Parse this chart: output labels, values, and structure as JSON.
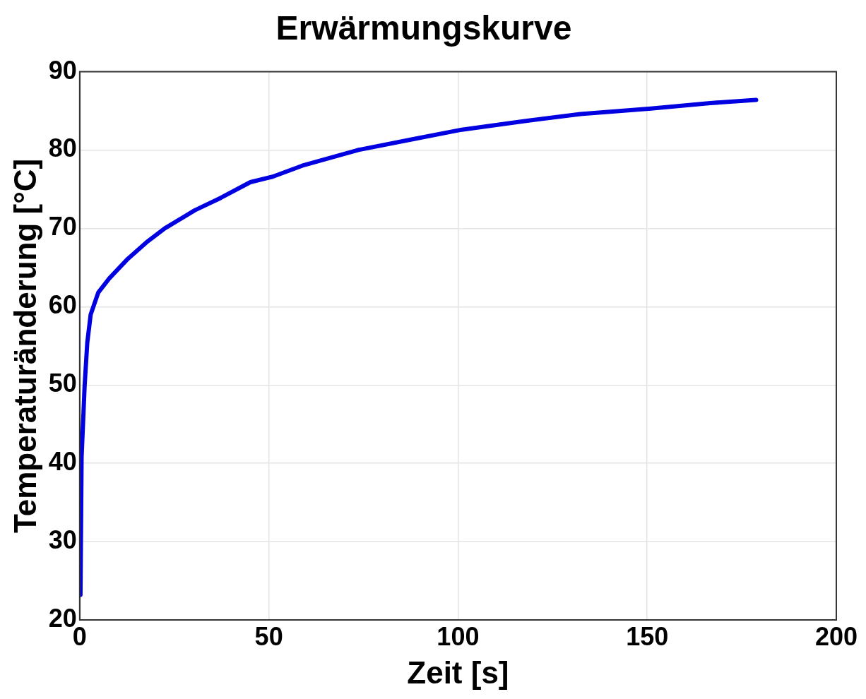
{
  "chart_data": {
    "type": "line",
    "title": "Erwärmungskurve",
    "xlabel": "Zeit [s]",
    "ylabel": "Temperaturänderung [°C]",
    "series": [
      {
        "color": "#0000e0",
        "x": [
          0.2,
          0.5,
          1.3,
          2.0,
          2.9,
          4.9,
          7.8,
          12.7,
          17.6,
          22.5,
          30.4,
          37.3,
          45.1,
          51,
          58.8,
          73.5,
          88.2,
          101,
          117.6,
          132.4,
          151,
          166.7,
          178.8
        ],
        "values": [
          23.2,
          40.8,
          49.9,
          55.4,
          59.0,
          61.8,
          63.6,
          66.1,
          68.2,
          70.0,
          72.3,
          73.9,
          75.9,
          76.6,
          78.0,
          80.0,
          81.4,
          82.6,
          83.7,
          84.6,
          85.3,
          86.0,
          86.4
        ]
      }
    ],
    "xlim": [
      0,
      200
    ],
    "xticks": [
      0,
      50,
      100,
      150,
      200
    ],
    "ylim": [
      20,
      90
    ],
    "yticks": [
      20,
      30,
      40,
      50,
      60,
      70,
      80,
      90
    ],
    "grid": true,
    "marker": "none",
    "line_style": "solid",
    "legend": false
  }
}
